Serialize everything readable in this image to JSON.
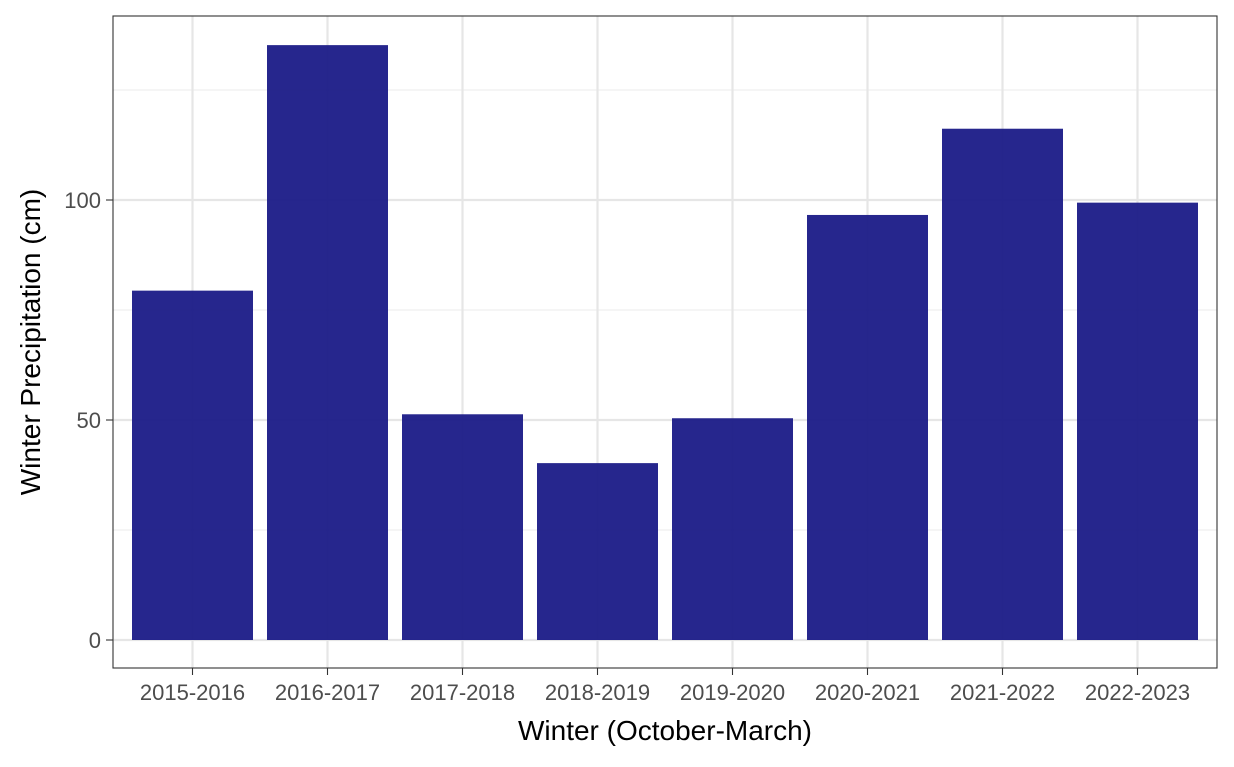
{
  "chart_data": {
    "type": "bar",
    "title": "",
    "xlabel": "Winter (October-March)",
    "ylabel": "Winter Precipitation (cm)",
    "categories": [
      "2015-2016",
      "2016-2017",
      "2017-2018",
      "2018-2019",
      "2019-2020",
      "2020-2021",
      "2021-2022",
      "2022-2023"
    ],
    "values": [
      79.4,
      135.2,
      51.3,
      40.2,
      50.4,
      96.6,
      116.2,
      99.4
    ],
    "ylim": [
      0,
      140
    ],
    "yticks": [
      0,
      50,
      100
    ],
    "grid": true,
    "bar_color": "#1a1a87",
    "bar_opacity": 0.95
  }
}
